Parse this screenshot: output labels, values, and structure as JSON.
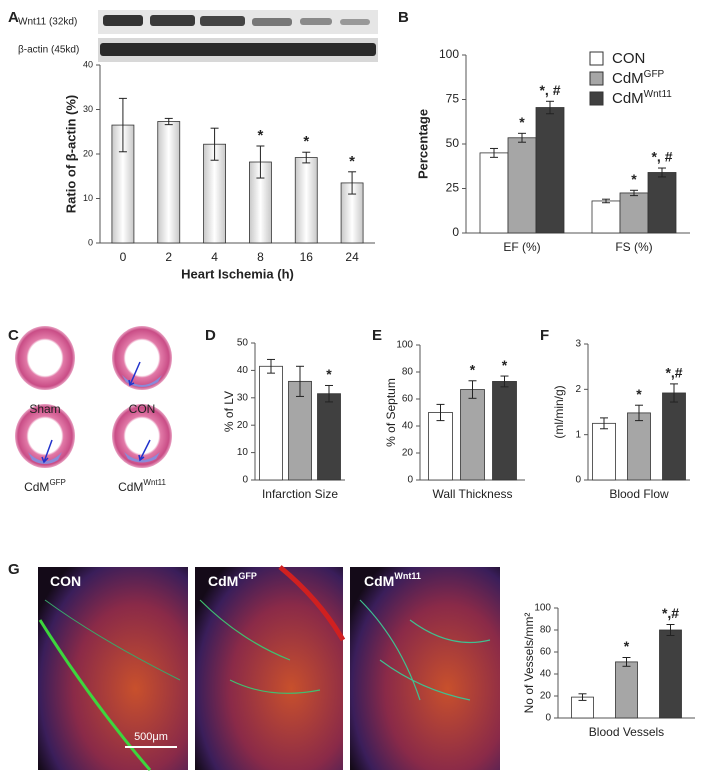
{
  "chart_data": [
    {
      "type": "bar",
      "panel": "A",
      "xlabel": "Heart Ischemia  (h)",
      "ylabel": "Ratio of β-actin (%)",
      "categories": [
        "0",
        "2",
        "4",
        "8",
        "16",
        "24"
      ],
      "series": [
        {
          "color": "#c8c8c8",
          "values": [
            26.5,
            27.3,
            22.2,
            18.2,
            19.2,
            13.5
          ],
          "errors": [
            6,
            0.7,
            3.6,
            3.6,
            1.2,
            2.5
          ],
          "annotations": [
            null,
            null,
            null,
            "*",
            "*",
            "*"
          ]
        }
      ],
      "ylim": [
        0,
        40
      ],
      "yticks": [
        0,
        10,
        20,
        30,
        40
      ]
    },
    {
      "type": "bar",
      "panel": "B",
      "ylabel": "Percentage",
      "legend": "top-right",
      "categories": [
        "EF (%)",
        "FS (%)"
      ],
      "series": [
        {
          "name": "CON",
          "color": "#ffffff",
          "values": [
            45,
            18
          ],
          "errors": [
            2.5,
            1
          ],
          "annotations": [
            null,
            null
          ]
        },
        {
          "name": "CdM",
          "superscript": "GFP",
          "color": "#a6a6a6",
          "values": [
            53.5,
            22.5
          ],
          "errors": [
            2.5,
            1.5
          ],
          "annotations": [
            "*",
            "*"
          ]
        },
        {
          "name": "CdM",
          "superscript": "Wnt11",
          "color": "#404040",
          "values": [
            70.5,
            34
          ],
          "errors": [
            3.5,
            2.5
          ],
          "annotations": [
            "*, #",
            "*, #"
          ]
        }
      ],
      "ylim": [
        0,
        100
      ],
      "yticks": [
        0,
        25,
        50,
        75,
        100
      ]
    },
    {
      "type": "bar",
      "panel": "D",
      "ylabel": "% of LV",
      "categories": [
        "Infarction Size"
      ],
      "series": [
        {
          "color": "#ffffff",
          "values": [
            41.5
          ],
          "errors": [
            2.5
          ],
          "annotations": [
            null
          ]
        },
        {
          "color": "#a6a6a6",
          "values": [
            36
          ],
          "errors": [
            5.5
          ],
          "annotations": [
            null
          ]
        },
        {
          "color": "#404040",
          "values": [
            31.5
          ],
          "errors": [
            3
          ],
          "annotations": [
            "*"
          ]
        }
      ],
      "ylim": [
        0,
        50
      ],
      "yticks": [
        0,
        10,
        20,
        30,
        40,
        50
      ]
    },
    {
      "type": "bar",
      "panel": "E",
      "ylabel": "% of Septum",
      "categories": [
        "Wall Thickness"
      ],
      "series": [
        {
          "color": "#ffffff",
          "values": [
            50
          ],
          "errors": [
            6
          ],
          "annotations": [
            null
          ]
        },
        {
          "color": "#a6a6a6",
          "values": [
            67
          ],
          "errors": [
            6.5
          ],
          "annotations": [
            "*"
          ]
        },
        {
          "color": "#404040",
          "values": [
            73
          ],
          "errors": [
            4
          ],
          "annotations": [
            "*"
          ]
        }
      ],
      "ylim": [
        0,
        100
      ],
      "yticks": [
        0,
        20,
        40,
        60,
        80,
        100
      ]
    },
    {
      "type": "bar",
      "panel": "F",
      "ylabel": "(ml/min/g)",
      "categories": [
        "Blood Flow"
      ],
      "series": [
        {
          "color": "#ffffff",
          "values": [
            1.25
          ],
          "errors": [
            0.12
          ],
          "annotations": [
            null
          ]
        },
        {
          "color": "#a6a6a6",
          "values": [
            1.48
          ],
          "errors": [
            0.17
          ],
          "annotations": [
            "*"
          ]
        },
        {
          "color": "#404040",
          "values": [
            1.92
          ],
          "errors": [
            0.2
          ],
          "annotations": [
            "*,#"
          ]
        }
      ],
      "ylim": [
        0,
        3
      ],
      "yticks": [
        0,
        1,
        2,
        3
      ]
    },
    {
      "type": "bar",
      "ylabel": "No of Vessels/mm²",
      "categories": [
        "Blood Vessels"
      ],
      "series": [
        {
          "color": "#ffffff",
          "values": [
            19
          ],
          "errors": [
            3
          ],
          "annotations": [
            null
          ]
        },
        {
          "color": "#a6a6a6",
          "values": [
            51
          ],
          "errors": [
            4
          ],
          "annotations": [
            "*"
          ]
        },
        {
          "color": "#404040",
          "values": [
            80
          ],
          "errors": [
            5
          ],
          "annotations": [
            "*,#"
          ]
        }
      ],
      "ylim": [
        0,
        100
      ],
      "yticks": [
        0,
        20,
        40,
        60,
        80,
        100
      ]
    }
  ],
  "blots": [
    "Wnt11 (32kd)",
    "β-actin (45kd)"
  ],
  "sections": {
    "panel": "C",
    "items": [
      {
        "label": "Sham"
      },
      {
        "label": "CON"
      },
      {
        "label": "CdM",
        "superscript": "GFP"
      },
      {
        "label": "CdM",
        "superscript": "Wnt11"
      }
    ]
  },
  "micrographs": {
    "panel": "G",
    "items": [
      {
        "label": "CON"
      },
      {
        "label": "CdM",
        "superscript": "GFP"
      },
      {
        "label": "CdM",
        "superscript": "Wnt11"
      }
    ],
    "scale_bar": "500μm"
  }
}
